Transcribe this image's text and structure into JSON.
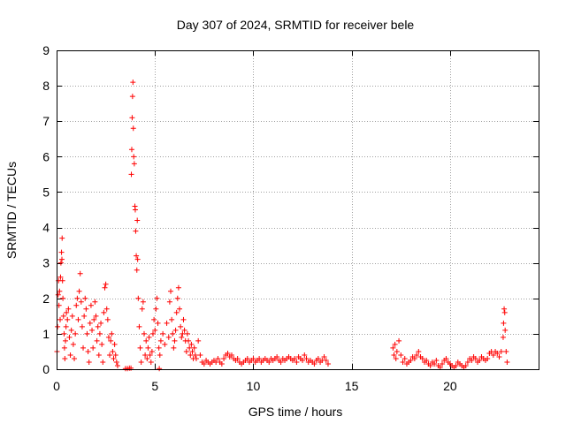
{
  "chart_data": {
    "type": "scatter",
    "title": "Day 307 of 2024, SRMTID for receiver bele",
    "xlabel": "GPS time / hours",
    "ylabel": "SRMTID / TECUs",
    "xlim": [
      0,
      24.5
    ],
    "ylim": [
      0,
      9
    ],
    "xticks": [
      0,
      5,
      10,
      15,
      20
    ],
    "yticks": [
      0,
      1,
      2,
      3,
      4,
      5,
      6,
      7,
      8,
      9
    ],
    "grid": true,
    "marker": "+",
    "color": "#ff0000",
    "series": [
      {
        "name": "SRMTID",
        "points": [
          [
            0.02,
            0.5
          ],
          [
            0.05,
            1.2
          ],
          [
            0.08,
            2.1
          ],
          [
            0.1,
            2.5
          ],
          [
            0.12,
            1.8
          ],
          [
            0.15,
            2.2
          ],
          [
            0.18,
            1.4
          ],
          [
            0.2,
            2.6
          ],
          [
            0.22,
            3.0
          ],
          [
            0.25,
            3.3
          ],
          [
            0.27,
            3.1
          ],
          [
            0.28,
            3.7
          ],
          [
            0.3,
            2.5
          ],
          [
            0.32,
            2.0
          ],
          [
            0.35,
            1.5
          ],
          [
            0.38,
            1.0
          ],
          [
            0.4,
            0.6
          ],
          [
            0.42,
            0.3
          ],
          [
            0.45,
            0.8
          ],
          [
            0.48,
            1.2
          ],
          [
            0.5,
            1.6
          ],
          [
            0.55,
            1.4
          ],
          [
            0.6,
            1.7
          ],
          [
            0.65,
            0.9
          ],
          [
            0.7,
            0.4
          ],
          [
            0.75,
            1.1
          ],
          [
            0.8,
            1.5
          ],
          [
            0.85,
            0.7
          ],
          [
            0.9,
            0.3
          ],
          [
            0.95,
            1.0
          ],
          [
            1.0,
            1.8
          ],
          [
            1.05,
            2.0
          ],
          [
            1.1,
            1.4
          ],
          [
            1.15,
            2.2
          ],
          [
            1.2,
            2.7
          ],
          [
            1.25,
            1.9
          ],
          [
            1.3,
            1.2
          ],
          [
            1.35,
            0.6
          ],
          [
            1.4,
            1.5
          ],
          [
            1.45,
            2.0
          ],
          [
            1.5,
            1.7
          ],
          [
            1.55,
            1.0
          ],
          [
            1.6,
            0.5
          ],
          [
            1.65,
            0.2
          ],
          [
            1.7,
            1.3
          ],
          [
            1.75,
            1.8
          ],
          [
            1.8,
            1.1
          ],
          [
            1.85,
            0.6
          ],
          [
            1.9,
            1.4
          ],
          [
            1.95,
            1.9
          ],
          [
            2.0,
            1.5
          ],
          [
            2.05,
            0.8
          ],
          [
            2.1,
            1.2
          ],
          [
            2.15,
            0.4
          ],
          [
            2.2,
            1.0
          ],
          [
            2.25,
            1.3
          ],
          [
            2.3,
            0.7
          ],
          [
            2.35,
            0.2
          ],
          [
            2.4,
            1.6
          ],
          [
            2.45,
            2.3
          ],
          [
            2.5,
            2.4
          ],
          [
            2.55,
            1.7
          ],
          [
            2.6,
            1.4
          ],
          [
            2.65,
            0.9
          ],
          [
            2.7,
            0.4
          ],
          [
            2.75,
            0.8
          ],
          [
            2.8,
            1.0
          ],
          [
            2.85,
            0.5
          ],
          [
            2.9,
            0.3
          ],
          [
            2.95,
            0.7
          ],
          [
            3.0,
            0.4
          ],
          [
            3.05,
            0.2
          ],
          [
            3.1,
            0.1
          ],
          [
            3.5,
            0.02
          ],
          [
            3.6,
            0.02
          ],
          [
            3.7,
            0.03
          ],
          [
            3.78,
            0.03
          ],
          [
            3.8,
            5.5
          ],
          [
            3.82,
            6.2
          ],
          [
            3.84,
            7.1
          ],
          [
            3.86,
            7.7
          ],
          [
            3.88,
            8.1
          ],
          [
            3.9,
            6.8
          ],
          [
            3.92,
            6.0
          ],
          [
            3.95,
            5.8
          ],
          [
            3.98,
            4.6
          ],
          [
            4.0,
            4.5
          ],
          [
            4.02,
            3.9
          ],
          [
            4.05,
            3.2
          ],
          [
            4.08,
            2.8
          ],
          [
            4.1,
            4.2
          ],
          [
            4.12,
            3.1
          ],
          [
            4.15,
            2.0
          ],
          [
            4.2,
            1.2
          ],
          [
            4.25,
            0.6
          ],
          [
            4.3,
            0.2
          ],
          [
            4.35,
            1.7
          ],
          [
            4.4,
            1.9
          ],
          [
            4.45,
            1.0
          ],
          [
            4.5,
            0.4
          ],
          [
            4.55,
            0.8
          ],
          [
            4.6,
            0.3
          ],
          [
            4.65,
            0.6
          ],
          [
            4.7,
            0.9
          ],
          [
            4.75,
            0.4
          ],
          [
            4.8,
            0.2
          ],
          [
            4.85,
            0.5
          ],
          [
            4.9,
            1.0
          ],
          [
            4.95,
            1.4
          ],
          [
            5.0,
            1.1
          ],
          [
            5.05,
            1.7
          ],
          [
            5.1,
            2.0
          ],
          [
            5.15,
            1.3
          ],
          [
            5.2,
            0.6
          ],
          [
            5.22,
            0.02
          ],
          [
            5.25,
            0.4
          ],
          [
            5.3,
            0.8
          ],
          [
            5.4,
            1.0
          ],
          [
            5.5,
            0.7
          ],
          [
            5.6,
            1.3
          ],
          [
            5.7,
            0.9
          ],
          [
            5.75,
            1.9
          ],
          [
            5.8,
            2.2
          ],
          [
            5.85,
            1.4
          ],
          [
            5.9,
            1.0
          ],
          [
            5.95,
            0.6
          ],
          [
            6.0,
            0.8
          ],
          [
            6.05,
            1.1
          ],
          [
            6.1,
            1.6
          ],
          [
            6.15,
            2.0
          ],
          [
            6.2,
            2.3
          ],
          [
            6.25,
            1.7
          ],
          [
            6.3,
            1.2
          ],
          [
            6.35,
            0.9
          ],
          [
            6.4,
            1.0
          ],
          [
            6.45,
            1.4
          ],
          [
            6.5,
            1.1
          ],
          [
            6.55,
            0.8
          ],
          [
            6.6,
            0.5
          ],
          [
            6.65,
            1.0
          ],
          [
            6.7,
            0.8
          ],
          [
            6.75,
            0.6
          ],
          [
            6.8,
            0.4
          ],
          [
            6.85,
            0.7
          ],
          [
            6.9,
            0.5
          ],
          [
            6.95,
            0.3
          ],
          [
            7.0,
            0.6
          ],
          [
            7.05,
            0.4
          ],
          [
            7.1,
            0.3
          ],
          [
            7.2,
            0.8
          ],
          [
            7.3,
            0.4
          ],
          [
            7.4,
            0.2
          ],
          [
            7.5,
            0.15
          ],
          [
            7.6,
            0.25
          ],
          [
            7.7,
            0.2
          ],
          [
            7.8,
            0.15
          ],
          [
            7.9,
            0.2
          ],
          [
            8.0,
            0.25
          ],
          [
            8.1,
            0.2
          ],
          [
            8.2,
            0.3
          ],
          [
            8.3,
            0.2
          ],
          [
            8.4,
            0.15
          ],
          [
            8.5,
            0.3
          ],
          [
            8.6,
            0.4
          ],
          [
            8.7,
            0.45
          ],
          [
            8.8,
            0.35
          ],
          [
            8.9,
            0.4
          ],
          [
            9.0,
            0.3
          ],
          [
            9.1,
            0.25
          ],
          [
            9.2,
            0.3
          ],
          [
            9.3,
            0.2
          ],
          [
            9.4,
            0.15
          ],
          [
            9.5,
            0.2
          ],
          [
            9.6,
            0.25
          ],
          [
            9.7,
            0.3
          ],
          [
            9.8,
            0.2
          ],
          [
            9.9,
            0.25
          ],
          [
            10.0,
            0.3
          ],
          [
            10.1,
            0.2
          ],
          [
            10.2,
            0.25
          ],
          [
            10.3,
            0.3
          ],
          [
            10.4,
            0.2
          ],
          [
            10.5,
            0.25
          ],
          [
            10.6,
            0.3
          ],
          [
            10.7,
            0.25
          ],
          [
            10.8,
            0.2
          ],
          [
            10.9,
            0.3
          ],
          [
            11.0,
            0.25
          ],
          [
            11.1,
            0.3
          ],
          [
            11.2,
            0.35
          ],
          [
            11.3,
            0.25
          ],
          [
            11.4,
            0.2
          ],
          [
            11.5,
            0.3
          ],
          [
            11.6,
            0.25
          ],
          [
            11.7,
            0.3
          ],
          [
            11.8,
            0.35
          ],
          [
            11.9,
            0.3
          ],
          [
            12.0,
            0.25
          ],
          [
            12.1,
            0.3
          ],
          [
            12.2,
            0.2
          ],
          [
            12.3,
            0.35
          ],
          [
            12.4,
            0.3
          ],
          [
            12.5,
            0.25
          ],
          [
            12.6,
            0.4
          ],
          [
            12.7,
            0.3
          ],
          [
            12.8,
            0.2
          ],
          [
            12.9,
            0.25
          ],
          [
            13.0,
            0.2
          ],
          [
            13.1,
            0.15
          ],
          [
            13.2,
            0.25
          ],
          [
            13.3,
            0.3
          ],
          [
            13.4,
            0.2
          ],
          [
            13.5,
            0.25
          ],
          [
            13.6,
            0.35
          ],
          [
            13.7,
            0.25
          ],
          [
            13.8,
            0.15
          ],
          [
            17.1,
            0.6
          ],
          [
            17.15,
            0.4
          ],
          [
            17.2,
            0.7
          ],
          [
            17.25,
            0.3
          ],
          [
            17.3,
            0.5
          ],
          [
            17.4,
            0.8
          ],
          [
            17.5,
            0.4
          ],
          [
            17.6,
            0.2
          ],
          [
            17.7,
            0.3
          ],
          [
            17.8,
            0.15
          ],
          [
            17.9,
            0.2
          ],
          [
            18.0,
            0.25
          ],
          [
            18.1,
            0.35
          ],
          [
            18.2,
            0.3
          ],
          [
            18.3,
            0.4
          ],
          [
            18.4,
            0.5
          ],
          [
            18.5,
            0.35
          ],
          [
            18.6,
            0.3
          ],
          [
            18.7,
            0.2
          ],
          [
            18.8,
            0.25
          ],
          [
            18.9,
            0.15
          ],
          [
            19.0,
            0.1
          ],
          [
            19.1,
            0.2
          ],
          [
            19.2,
            0.15
          ],
          [
            19.3,
            0.25
          ],
          [
            19.4,
            0.1
          ],
          [
            19.5,
            0.05
          ],
          [
            19.6,
            0.15
          ],
          [
            19.7,
            0.25
          ],
          [
            19.8,
            0.3
          ],
          [
            19.9,
            0.2
          ],
          [
            20.0,
            0.15
          ],
          [
            20.1,
            0.1
          ],
          [
            20.2,
            0.05
          ],
          [
            20.3,
            0.1
          ],
          [
            20.4,
            0.2
          ],
          [
            20.5,
            0.15
          ],
          [
            20.6,
            0.1
          ],
          [
            20.7,
            0.05
          ],
          [
            20.8,
            0.1
          ],
          [
            20.9,
            0.2
          ],
          [
            21.0,
            0.3
          ],
          [
            21.1,
            0.25
          ],
          [
            21.2,
            0.35
          ],
          [
            21.3,
            0.3
          ],
          [
            21.4,
            0.2
          ],
          [
            21.5,
            0.25
          ],
          [
            21.6,
            0.35
          ],
          [
            21.7,
            0.3
          ],
          [
            21.8,
            0.25
          ],
          [
            21.9,
            0.3
          ],
          [
            22.0,
            0.45
          ],
          [
            22.1,
            0.5
          ],
          [
            22.2,
            0.4
          ],
          [
            22.3,
            0.5
          ],
          [
            22.4,
            0.45
          ],
          [
            22.5,
            0.35
          ],
          [
            22.6,
            0.5
          ],
          [
            22.7,
            0.9
          ],
          [
            22.72,
            1.3
          ],
          [
            22.75,
            1.7
          ],
          [
            22.78,
            1.6
          ],
          [
            22.8,
            1.1
          ],
          [
            22.85,
            0.5
          ],
          [
            22.9,
            0.2
          ]
        ]
      }
    ]
  }
}
